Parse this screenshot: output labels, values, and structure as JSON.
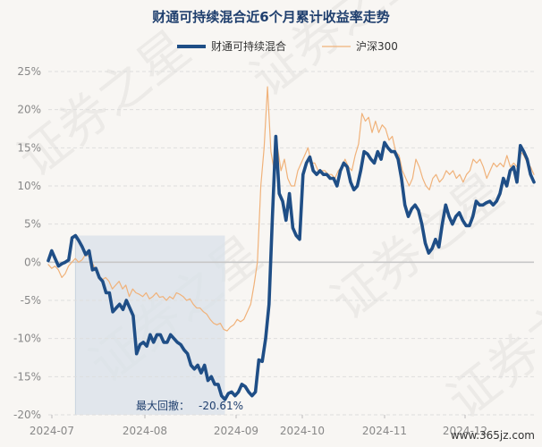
{
  "chart_data": {
    "type": "line",
    "title": "财通可持续混合近6个月累计收益率走势",
    "yunit": "%",
    "ylim": [
      -20,
      25
    ],
    "yticks": [
      25,
      20,
      15,
      10,
      5,
      0,
      -5,
      -10,
      -15,
      -20
    ],
    "xticks": [
      "2024-07",
      "2024-08",
      "2024-09",
      "2024-10",
      "2024-11",
      "2024-12"
    ],
    "grid": true,
    "legend": "top",
    "series": [
      {
        "name": "财通可持续混合",
        "color": "#1f4e86",
        "values": [
          0.2,
          1.5,
          0.5,
          -0.5,
          -0.2,
          0,
          0.3,
          3.2,
          3.5,
          2.8,
          2,
          1,
          1.5,
          -1,
          -0.8,
          -2,
          -2.5,
          -4,
          -4,
          -6.5,
          -6,
          -5.5,
          -6.2,
          -5,
          -6,
          -7,
          -12,
          -10.8,
          -10.5,
          -11,
          -9.5,
          -10.5,
          -9.5,
          -9.5,
          -10.5,
          -10.5,
          -9.5,
          -10,
          -10.5,
          -10.8,
          -11.5,
          -12,
          -13.5,
          -14,
          -13.5,
          -14.5,
          -13.5,
          -15.5,
          -15,
          -16,
          -16,
          -17.5,
          -18,
          -17.2,
          -17,
          -17.5,
          -17,
          -16,
          -16.3,
          -17,
          -17.5,
          -17,
          -12.8,
          -13,
          -10,
          -5.5,
          6,
          16.5,
          9,
          8,
          5.5,
          9,
          4.5,
          3.5,
          3,
          11.5,
          13,
          13.8,
          12,
          11.5,
          12,
          11.5,
          11.5,
          11,
          11,
          10,
          12,
          13,
          12.5,
          10.5,
          9.5,
          10,
          12,
          14.5,
          14.2,
          13.5,
          13,
          14.5,
          13.5,
          15.7,
          15,
          14.5,
          14.5,
          13.5,
          11,
          7.5,
          6,
          7,
          7.5,
          6.8,
          5,
          2.5,
          1.2,
          1.8,
          3,
          2,
          5,
          7.5,
          6,
          5,
          6,
          6.5,
          5.5,
          4.8,
          4.8,
          6,
          8,
          7.5,
          7.5,
          7.8,
          8,
          7.5,
          8,
          9,
          11,
          10,
          12,
          12.5,
          10.5,
          15.3,
          14.5,
          13.5,
          11.5,
          10.5
        ]
      },
      {
        "name": "沪深300",
        "color": "#f0b27a",
        "values": [
          -0.3,
          -0.8,
          -0.5,
          -1,
          -2,
          -1.5,
          -0.5,
          0,
          0.5,
          0,
          0.3,
          1,
          0.8,
          0,
          -1,
          -2,
          -2.3,
          -2,
          -2.5,
          -3.5,
          -3,
          -2.5,
          -3.5,
          -3,
          -4.5,
          -3.5,
          -4,
          -4.2,
          -4.5,
          -4,
          -4.8,
          -4.5,
          -4,
          -4.6,
          -4.5,
          -5,
          -4.5,
          -4.8,
          -4,
          -4.2,
          -4.5,
          -5,
          -4.8,
          -5.5,
          -6,
          -6,
          -6.5,
          -6.8,
          -7.5,
          -8,
          -8.2,
          -8,
          -8.8,
          -9,
          -8.5,
          -8.2,
          -7.5,
          -7.8,
          -7.5,
          -6.5,
          -5.5,
          -3,
          0,
          10,
          15,
          23,
          14.5,
          12,
          15,
          12,
          13.5,
          11,
          10,
          10,
          12,
          13,
          14,
          15,
          13,
          13,
          12,
          12,
          12,
          11.5,
          11.5,
          11,
          12,
          12.5,
          13.5,
          12.5,
          12,
          14,
          15.5,
          19.5,
          18.5,
          19,
          17,
          18.5,
          17,
          18,
          17.5,
          16,
          16.5,
          14.5,
          14,
          12,
          11,
          10,
          11,
          13.5,
          12.5,
          11,
          10,
          9.5,
          11,
          11.5,
          10.5,
          11,
          12,
          11.5,
          12,
          11,
          11.5,
          10.5,
          11.5,
          12,
          13.5,
          13,
          13.5,
          12.5,
          11,
          12,
          13,
          12.5,
          13,
          12.5,
          14,
          12.5,
          13,
          12.5,
          14.5,
          14,
          13,
          12.5,
          11.5
        ]
      }
    ],
    "annotation": {
      "label": "最大回撤：",
      "value": "-20.61%",
      "shade_color": "#dbe2ea"
    }
  },
  "watermark": {
    "background_text": "证券之星",
    "site": "www.365jz.com"
  }
}
